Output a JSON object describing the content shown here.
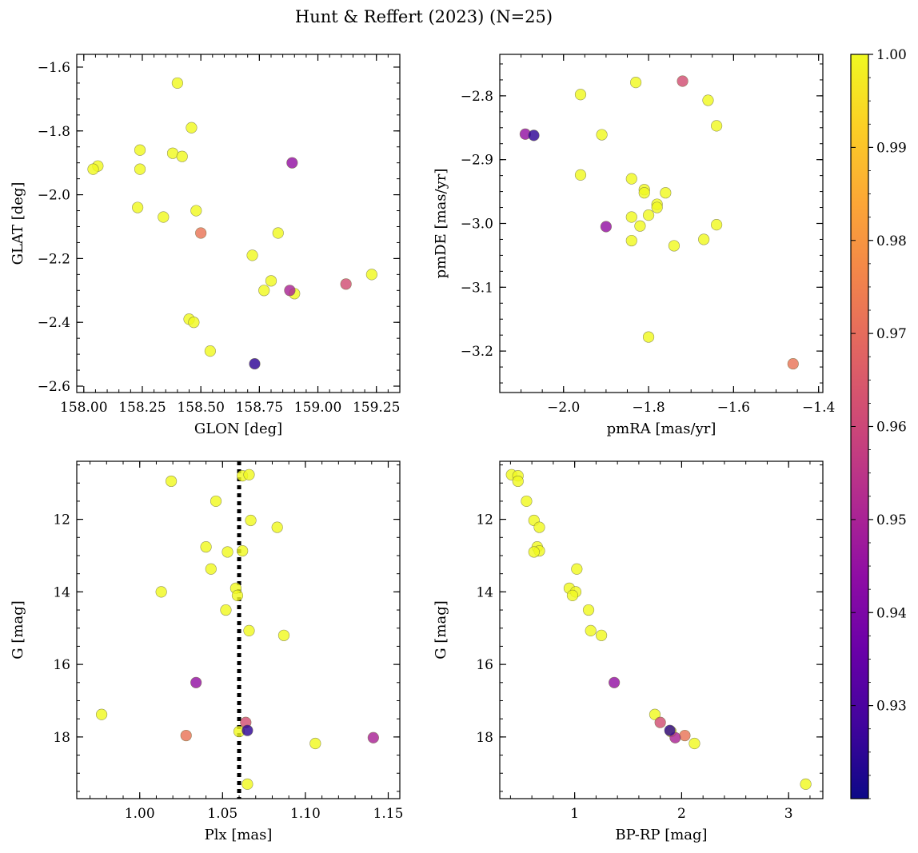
{
  "figure": {
    "title": "Hunt & Reffert (2023) (N=25)"
  },
  "colorbar": {
    "colormap": "plasma",
    "vmin": 0.92,
    "vmax": 1.0,
    "ticks": [
      0.93,
      0.94,
      0.95,
      0.96,
      0.97,
      0.98,
      0.99,
      1.0
    ],
    "tick_labels": [
      "0.93",
      "0.94",
      "0.95",
      "0.96",
      "0.97",
      "0.98",
      "0.99",
      "1.00"
    ]
  },
  "chart_data": [
    {
      "type": "scatter",
      "name": "glon-glat",
      "xlabel": "GLON [deg]",
      "ylabel": "GLAT [deg]",
      "xlim": [
        157.97,
        159.35
      ],
      "ylim": [
        -2.62,
        -1.56
      ],
      "invert_y": false,
      "xticks": [
        158.0,
        158.25,
        158.5,
        158.75,
        159.0,
        159.25
      ],
      "xtick_labels": [
        "158.00",
        "158.25",
        "158.50",
        "158.75",
        "159.00",
        "159.25"
      ],
      "yticks": [
        -2.6,
        -2.4,
        -2.2,
        -2.0,
        -1.8,
        -1.6
      ],
      "ytick_labels": [
        "−2.6",
        "−2.4",
        "−2.2",
        "−2.0",
        "−1.8",
        "−1.6"
      ],
      "x_minor": 0.05,
      "y_minor": 0.05,
      "points": [
        {
          "x": 158.4,
          "y": -1.65,
          "c": 1.0
        },
        {
          "x": 158.46,
          "y": -1.79,
          "c": 1.0
        },
        {
          "x": 158.24,
          "y": -1.86,
          "c": 1.0
        },
        {
          "x": 158.38,
          "y": -1.87,
          "c": 1.0
        },
        {
          "x": 158.42,
          "y": -1.88,
          "c": 1.0
        },
        {
          "x": 158.06,
          "y": -1.91,
          "c": 1.0
        },
        {
          "x": 158.04,
          "y": -1.92,
          "c": 1.0
        },
        {
          "x": 158.24,
          "y": -1.92,
          "c": 1.0
        },
        {
          "x": 158.89,
          "y": -1.9,
          "c": 0.945
        },
        {
          "x": 158.23,
          "y": -2.04,
          "c": 1.0
        },
        {
          "x": 158.34,
          "y": -2.07,
          "c": 1.0
        },
        {
          "x": 158.48,
          "y": -2.05,
          "c": 1.0
        },
        {
          "x": 158.5,
          "y": -2.12,
          "c": 0.972
        },
        {
          "x": 158.83,
          "y": -2.12,
          "c": 1.0
        },
        {
          "x": 158.72,
          "y": -2.19,
          "c": 1.0
        },
        {
          "x": 158.8,
          "y": -2.27,
          "c": 1.0
        },
        {
          "x": 159.23,
          "y": -2.25,
          "c": 1.0
        },
        {
          "x": 159.12,
          "y": -2.28,
          "c": 0.962
        },
        {
          "x": 158.77,
          "y": -2.3,
          "c": 1.0
        },
        {
          "x": 158.88,
          "y": -2.3,
          "c": 0.95
        },
        {
          "x": 158.9,
          "y": -2.31,
          "c": 1.0
        },
        {
          "x": 158.45,
          "y": -2.39,
          "c": 1.0
        },
        {
          "x": 158.47,
          "y": -2.4,
          "c": 1.0
        },
        {
          "x": 158.54,
          "y": -2.49,
          "c": 1.0
        },
        {
          "x": 158.73,
          "y": -2.53,
          "c": 0.925
        }
      ]
    },
    {
      "type": "scatter",
      "name": "pmra-pmde",
      "xlabel": "pmRA [mas/yr]",
      "ylabel": "pmDE [mas/yr]",
      "xlim": [
        -2.15,
        -1.39
      ],
      "ylim": [
        -3.265,
        -2.735
      ],
      "invert_y": false,
      "xticks": [
        -2.0,
        -1.8,
        -1.6,
        -1.4
      ],
      "xtick_labels": [
        "−2.0",
        "−1.8",
        "−1.6",
        "−1.4"
      ],
      "yticks": [
        -3.2,
        -3.1,
        -3.0,
        -2.9,
        -2.8
      ],
      "ytick_labels": [
        "−3.2",
        "−3.1",
        "−3.0",
        "−2.9",
        "−2.8"
      ],
      "x_minor": 0.05,
      "y_minor": 0.025,
      "points": [
        {
          "x": -1.72,
          "y": -2.777,
          "c": 0.962
        },
        {
          "x": -1.83,
          "y": -2.779,
          "c": 1.0
        },
        {
          "x": -1.96,
          "y": -2.798,
          "c": 1.0
        },
        {
          "x": -1.66,
          "y": -2.807,
          "c": 1.0
        },
        {
          "x": -1.64,
          "y": -2.847,
          "c": 1.0
        },
        {
          "x": -2.09,
          "y": -2.86,
          "c": 0.945
        },
        {
          "x": -2.07,
          "y": -2.862,
          "c": 0.925
        },
        {
          "x": -1.91,
          "y": -2.861,
          "c": 1.0
        },
        {
          "x": -1.96,
          "y": -2.924,
          "c": 1.0
        },
        {
          "x": -1.84,
          "y": -2.93,
          "c": 1.0
        },
        {
          "x": -1.81,
          "y": -2.947,
          "c": 1.0
        },
        {
          "x": -1.81,
          "y": -2.952,
          "c": 1.0
        },
        {
          "x": -1.76,
          "y": -2.952,
          "c": 1.0
        },
        {
          "x": -1.78,
          "y": -2.97,
          "c": 1.0
        },
        {
          "x": -1.78,
          "y": -2.975,
          "c": 1.0
        },
        {
          "x": -1.8,
          "y": -2.987,
          "c": 1.0
        },
        {
          "x": -1.84,
          "y": -2.99,
          "c": 1.0
        },
        {
          "x": -1.82,
          "y": -3.004,
          "c": 1.0
        },
        {
          "x": -1.9,
          "y": -3.005,
          "c": 0.945
        },
        {
          "x": -1.64,
          "y": -3.002,
          "c": 1.0
        },
        {
          "x": -1.67,
          "y": -3.025,
          "c": 1.0
        },
        {
          "x": -1.84,
          "y": -3.027,
          "c": 1.0
        },
        {
          "x": -1.74,
          "y": -3.035,
          "c": 1.0
        },
        {
          "x": -1.8,
          "y": -3.178,
          "c": 1.0
        },
        {
          "x": -1.46,
          "y": -3.22,
          "c": 0.972
        }
      ]
    },
    {
      "type": "scatter",
      "name": "plx-g",
      "xlabel": "Plx [mas]",
      "ylabel": "G [mag]",
      "xlim": [
        0.962,
        1.157
      ],
      "ylim": [
        10.4,
        19.7
      ],
      "invert_y": true,
      "xticks": [
        1.0,
        1.05,
        1.1,
        1.15
      ],
      "xtick_labels": [
        "1.00",
        "1.05",
        "1.10",
        "1.15"
      ],
      "yticks": [
        12,
        14,
        16,
        18
      ],
      "ytick_labels": [
        "12",
        "14",
        "16",
        "18"
      ],
      "x_minor": 0.01,
      "y_minor": 0.5,
      "vline": {
        "x": 1.06,
        "style": "dotted"
      },
      "points": [
        {
          "x": 1.062,
          "y": 10.8,
          "c": 1.0
        },
        {
          "x": 1.066,
          "y": 10.77,
          "c": 1.0
        },
        {
          "x": 1.019,
          "y": 10.95,
          "c": 1.0
        },
        {
          "x": 1.046,
          "y": 11.5,
          "c": 1.0
        },
        {
          "x": 1.067,
          "y": 12.03,
          "c": 1.0
        },
        {
          "x": 1.083,
          "y": 12.22,
          "c": 1.0
        },
        {
          "x": 1.04,
          "y": 12.76,
          "c": 1.0
        },
        {
          "x": 1.062,
          "y": 12.87,
          "c": 1.0
        },
        {
          "x": 1.053,
          "y": 12.9,
          "c": 1.0
        },
        {
          "x": 1.043,
          "y": 13.37,
          "c": 1.0
        },
        {
          "x": 1.058,
          "y": 13.9,
          "c": 1.0
        },
        {
          "x": 1.013,
          "y": 14.0,
          "c": 1.0
        },
        {
          "x": 1.059,
          "y": 14.1,
          "c": 1.0
        },
        {
          "x": 1.052,
          "y": 14.5,
          "c": 1.0
        },
        {
          "x": 1.066,
          "y": 15.07,
          "c": 1.0
        },
        {
          "x": 1.087,
          "y": 15.2,
          "c": 1.0
        },
        {
          "x": 1.034,
          "y": 16.5,
          "c": 0.945
        },
        {
          "x": 0.977,
          "y": 17.38,
          "c": 1.0
        },
        {
          "x": 1.064,
          "y": 17.6,
          "c": 0.962
        },
        {
          "x": 1.065,
          "y": 17.82,
          "c": 0.925
        },
        {
          "x": 1.06,
          "y": 17.85,
          "c": 1.0
        },
        {
          "x": 1.028,
          "y": 17.96,
          "c": 0.972
        },
        {
          "x": 1.141,
          "y": 18.02,
          "c": 0.95
        },
        {
          "x": 1.106,
          "y": 18.18,
          "c": 1.0
        },
        {
          "x": 1.065,
          "y": 19.3,
          "c": 1.0
        }
      ]
    },
    {
      "type": "scatter",
      "name": "bprp-g",
      "xlabel": "BP-RP [mag]",
      "ylabel": "G [mag]",
      "xlim": [
        0.3,
        3.32
      ],
      "ylim": [
        10.4,
        19.7
      ],
      "invert_y": true,
      "xticks": [
        1,
        2,
        3
      ],
      "xtick_labels": [
        "1",
        "2",
        "3"
      ],
      "yticks": [
        12,
        14,
        16,
        18
      ],
      "ytick_labels": [
        "12",
        "14",
        "16",
        "18"
      ],
      "x_minor": 0.2,
      "y_minor": 0.5,
      "points": [
        {
          "x": 0.41,
          "y": 10.77,
          "c": 1.0
        },
        {
          "x": 0.47,
          "y": 10.8,
          "c": 1.0
        },
        {
          "x": 0.47,
          "y": 10.95,
          "c": 1.0
        },
        {
          "x": 0.55,
          "y": 11.5,
          "c": 1.0
        },
        {
          "x": 0.62,
          "y": 12.03,
          "c": 1.0
        },
        {
          "x": 0.67,
          "y": 12.22,
          "c": 1.0
        },
        {
          "x": 0.65,
          "y": 12.76,
          "c": 1.0
        },
        {
          "x": 0.67,
          "y": 12.87,
          "c": 1.0
        },
        {
          "x": 0.62,
          "y": 12.9,
          "c": 1.0
        },
        {
          "x": 1.02,
          "y": 13.37,
          "c": 1.0
        },
        {
          "x": 0.95,
          "y": 13.9,
          "c": 1.0
        },
        {
          "x": 1.01,
          "y": 14.0,
          "c": 1.0
        },
        {
          "x": 0.98,
          "y": 14.1,
          "c": 1.0
        },
        {
          "x": 1.13,
          "y": 14.5,
          "c": 1.0
        },
        {
          "x": 1.15,
          "y": 15.07,
          "c": 1.0
        },
        {
          "x": 1.25,
          "y": 15.2,
          "c": 1.0
        },
        {
          "x": 1.37,
          "y": 16.5,
          "c": 0.945
        },
        {
          "x": 1.75,
          "y": 17.38,
          "c": 1.0
        },
        {
          "x": 1.8,
          "y": 17.6,
          "c": 0.962
        },
        {
          "x": 1.89,
          "y": 17.82,
          "c": 0.925
        },
        {
          "x": 1.9,
          "y": 17.85,
          "c": 1.0
        },
        {
          "x": 2.03,
          "y": 17.96,
          "c": 0.972
        },
        {
          "x": 1.94,
          "y": 18.02,
          "c": 0.95
        },
        {
          "x": 2.12,
          "y": 18.18,
          "c": 1.0
        },
        {
          "x": 3.16,
          "y": 19.3,
          "c": 1.0
        }
      ]
    }
  ]
}
